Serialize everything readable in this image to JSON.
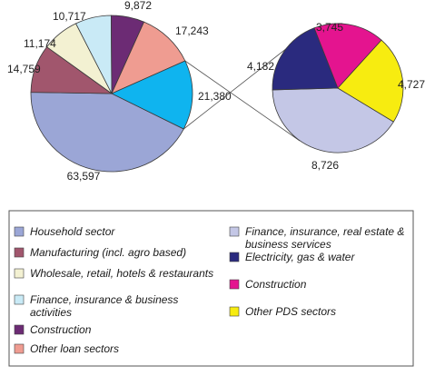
{
  "chart_data": [
    {
      "type": "pie",
      "series": [
        {
          "name": "",
          "values": [
            63597,
            14759,
            11174,
            10717,
            9872,
            17243,
            21380
          ],
          "value_labels": [
            "63,597",
            "14,759",
            "11,174",
            "10,717",
            "9,872",
            "17,243",
            "21,380"
          ],
          "categories": [
            "Household sector",
            "Manufacturing (incl. agro based)",
            "Wholesale, retail, hotels & restaurants",
            "Finance, insurance & business activities",
            "Construction",
            "Other loan sectors",
            "Other PDS sectors"
          ],
          "colors": [
            "#9ba6d6",
            "#a1566d",
            "#f3f1d2",
            "#c9eaf6",
            "#6c2b74",
            "#ef9c91",
            "#0fb4ef"
          ]
        }
      ]
    },
    {
      "type": "pie",
      "series": [
        {
          "name": "",
          "values": [
            8726,
            4182,
            3745,
            4727
          ],
          "value_labels": [
            "8,726",
            "4,182",
            "3,745",
            "4,727"
          ],
          "categories": [
            "Finance, insurance, real estate & business services",
            "Electricity, gas & water",
            "Construction",
            "Other PDS sectors"
          ],
          "colors": [
            "#c4c7e6",
            "#2a2a7e",
            "#e4148f",
            "#f7ec10"
          ]
        }
      ]
    }
  ],
  "legend": {
    "left": [
      {
        "label": "Household sector",
        "color": "#9ba6d6"
      },
      {
        "label": "Manufacturing (incl. agro based)",
        "color": "#a1566d"
      },
      {
        "label": "Wholesale, retail, hotels & restaurants",
        "color": "#f3f1d2"
      },
      {
        "label": "Finance, insurance & business\nactivities",
        "color": "#c9eaf6"
      },
      {
        "label": "Construction",
        "color": "#6c2b74"
      },
      {
        "label": "Other loan sectors",
        "color": "#ef9c91"
      }
    ],
    "right": [
      {
        "label": "Finance, insurance, real estate &\nbusiness services",
        "color": "#c4c7e6"
      },
      {
        "label": "Electricity, gas & water",
        "color": "#2a2a7e"
      },
      {
        "label": "Construction",
        "color": "#e4148f"
      },
      {
        "label": "Other PDS sectors",
        "color": "#f7ec10"
      }
    ]
  }
}
